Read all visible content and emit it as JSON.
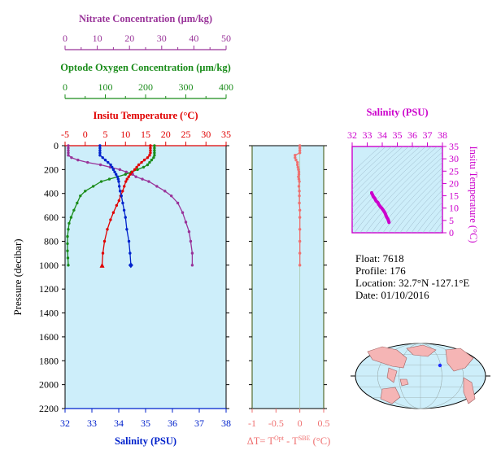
{
  "colors": {
    "nitrate": "#993399",
    "oxygen": "#1a8c1a",
    "temperature": "#e00000",
    "salinity": "#0022cc",
    "delta_t": "#ef7070",
    "ts_axis": "#cc00cc",
    "panel_bg": "#cdeefa",
    "land": "#f5b5b5"
  },
  "labels": {
    "credit": "",
    "delta_t_prefix": "ΔT= T",
    "delta_t_sup1": "Opt",
    "delta_t_mid": " - T",
    "delta_t_sup2": "SBE",
    "delta_t_suffix": " (°C)"
  },
  "info": {
    "float": "Float:  7618",
    "profile": "Profile:  176",
    "location": "Location:  32.7°N  -127.1°E",
    "date": "Date:  01/10/2016"
  },
  "chart_data": [
    {
      "type": "line",
      "name": "profiles",
      "ylabel": "Pressure (decibar)",
      "ylim": [
        2200,
        0
      ],
      "yticks": [
        0,
        200,
        400,
        600,
        800,
        1000,
        1200,
        1400,
        1600,
        1800,
        2000,
        2200
      ],
      "axes": {
        "nitrate": {
          "label": "Nitrate Concentration (μm/kg)",
          "lim": [
            0,
            50
          ],
          "ticks": [
            0,
            10,
            20,
            30,
            40,
            50
          ]
        },
        "oxygen": {
          "label": "Optode Oxygen Concentration (μm/kg)",
          "lim": [
            0,
            400
          ],
          "ticks": [
            0,
            100,
            200,
            300,
            400
          ]
        },
        "temperature": {
          "label": "Insitu Temperature (°C)",
          "lim": [
            -5,
            35
          ],
          "ticks": [
            -5,
            0,
            5,
            10,
            15,
            20,
            25,
            30,
            35
          ]
        },
        "salinity": {
          "label": "Salinity (PSU)",
          "lim": [
            32,
            38
          ],
          "ticks": [
            32,
            33,
            34,
            35,
            36,
            37,
            38
          ]
        }
      },
      "series": [
        {
          "key": "nitrate",
          "p": [
            0,
            20,
            40,
            60,
            80,
            100,
            120,
            140,
            160,
            180,
            200,
            220,
            240,
            260,
            280,
            300,
            340,
            380,
            420,
            480,
            560,
            640,
            720,
            800,
            900,
            1000
          ],
          "v": [
            1,
            1,
            1,
            1,
            1,
            2,
            4,
            7,
            11,
            14,
            17,
            19,
            21,
            22,
            24,
            26,
            28.5,
            31,
            33,
            35,
            36.5,
            37.5,
            38.5,
            39,
            39.5,
            39.5
          ]
        },
        {
          "key": "oxygen",
          "p": [
            0,
            20,
            40,
            60,
            80,
            100,
            120,
            140,
            160,
            180,
            200,
            220,
            240,
            260,
            280,
            300,
            340,
            380,
            420,
            480,
            540,
            600,
            650,
            700,
            760,
            820,
            880,
            940,
            1000
          ],
          "v": [
            222,
            222,
            222,
            222,
            222,
            220,
            215,
            210,
            205,
            195,
            180,
            165,
            150,
            130,
            110,
            90,
            70,
            50,
            38,
            30,
            22,
            15,
            10,
            8,
            6,
            6,
            6,
            7,
            8
          ]
        },
        {
          "key": "temperature",
          "p": [
            0,
            20,
            40,
            60,
            80,
            100,
            120,
            140,
            160,
            180,
            200,
            220,
            240,
            260,
            280,
            300,
            340,
            380,
            420,
            460,
            500,
            560,
            620,
            700,
            800,
            900,
            1000
          ],
          "v": [
            16.2,
            16.2,
            16.2,
            16.2,
            16,
            15.5,
            14.7,
            14,
            13.3,
            12.8,
            12.3,
            11.7,
            11.2,
            10.8,
            10.4,
            10.1,
            9.7,
            9.3,
            8.8,
            8.4,
            7.8,
            7,
            6.3,
            5.5,
            4.8,
            4.4,
            4.2
          ]
        },
        {
          "key": "salinity",
          "p": [
            0,
            20,
            40,
            60,
            80,
            100,
            120,
            140,
            160,
            180,
            200,
            220,
            240,
            260,
            280,
            300,
            340,
            380,
            420,
            480,
            540,
            600,
            700,
            800,
            900,
            1000
          ],
          "v": [
            33.3,
            33.3,
            33.3,
            33.3,
            33.3,
            33.4,
            33.5,
            33.6,
            33.7,
            33.75,
            33.8,
            33.85,
            33.9,
            33.95,
            33.98,
            34.0,
            34.02,
            34.05,
            34.1,
            34.15,
            34.2,
            34.25,
            34.3,
            34.38,
            34.42,
            34.45
          ]
        }
      ]
    },
    {
      "type": "line",
      "name": "delta_t",
      "xlim": [
        -1.0,
        0.5
      ],
      "xticks": [
        -1.0,
        -0.5,
        0.0,
        0.5
      ],
      "ylim": [
        2200,
        0
      ],
      "points": {
        "p": [
          0,
          20,
          40,
          60,
          80,
          100,
          120,
          140,
          160,
          180,
          200,
          220,
          240,
          260,
          280,
          300,
          340,
          380,
          420,
          480,
          540,
          600,
          700,
          800,
          900,
          1000
        ],
        "v": [
          0,
          0,
          0,
          0,
          -0.1,
          -0.1,
          -0.08,
          -0.05,
          -0.05,
          -0.04,
          -0.03,
          -0.02,
          -0.02,
          -0.03,
          -0.02,
          -0.01,
          -0.02,
          -0.01,
          -0.01,
          -0.01,
          0,
          0,
          0,
          0,
          0,
          0
        ]
      }
    },
    {
      "type": "scatter",
      "name": "ts",
      "xlabel": "Salinity (PSU)",
      "ylabel": "Insitu Temperature (°C)",
      "xlim": [
        32,
        38
      ],
      "xticks": [
        32,
        33,
        34,
        35,
        36,
        37,
        38
      ],
      "ylim": [
        0,
        35
      ],
      "yticks": [
        0,
        5,
        10,
        15,
        20,
        25,
        30,
        35
      ],
      "points": {
        "s": [
          33.3,
          33.3,
          33.35,
          33.4,
          33.5,
          33.55,
          33.6,
          33.7,
          33.75,
          33.8,
          33.85,
          33.9,
          33.95,
          34.0,
          34.05,
          34.1,
          34.15,
          34.2,
          34.25,
          34.3,
          34.38,
          34.42,
          34.45
        ],
        "t": [
          16.2,
          16,
          15.5,
          14.7,
          14,
          13.3,
          12.8,
          12.3,
          11.7,
          11.2,
          10.8,
          10.4,
          10.1,
          9.7,
          9.3,
          8.8,
          8.4,
          7.8,
          7,
          6.3,
          5.5,
          4.8,
          4.2
        ]
      }
    }
  ]
}
